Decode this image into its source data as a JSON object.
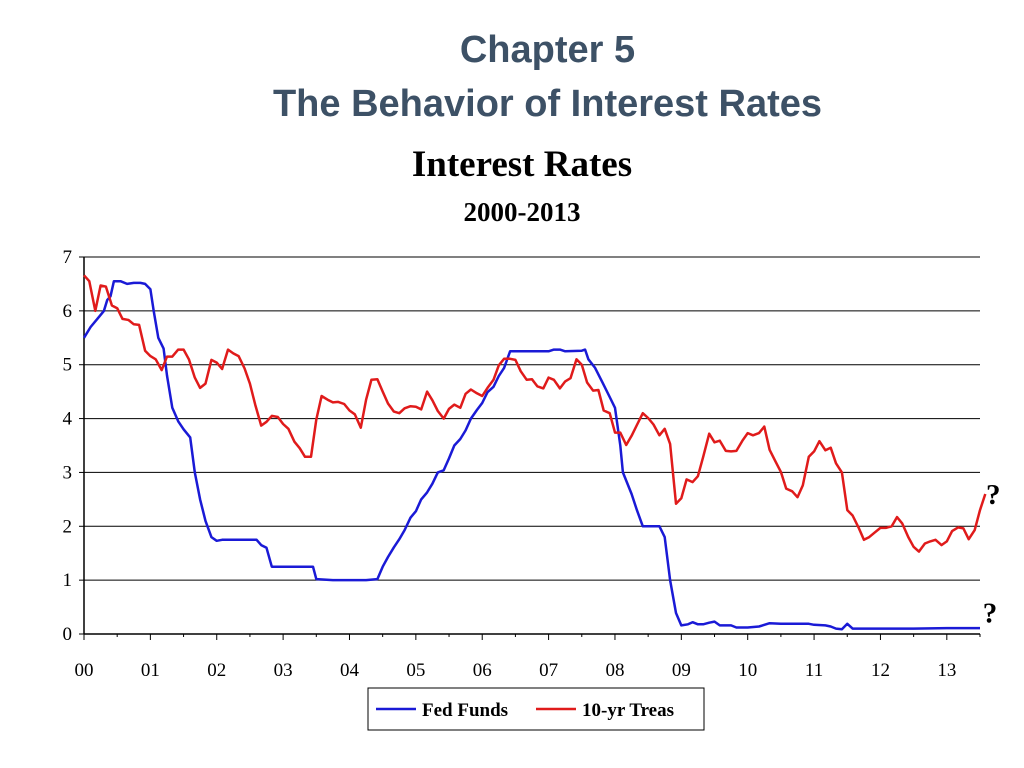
{
  "slide": {
    "title_line1": "Chapter 5",
    "title_line2": "The Behavior of Interest Rates"
  },
  "chart_data": {
    "type": "line",
    "title": "Interest Rates",
    "subtitle": "2000-2013",
    "xlabel": "",
    "ylabel": "",
    "xlim": [
      2000,
      2013.5
    ],
    "ylim": [
      0,
      7
    ],
    "y_ticks": [
      0,
      1,
      2,
      3,
      4,
      5,
      6,
      7
    ],
    "x_tick_values": [
      2000,
      2001,
      2002,
      2003,
      2004,
      2005,
      2006,
      2007,
      2008,
      2009,
      2010,
      2011,
      2012,
      2013
    ],
    "x_tick_labels": [
      "00",
      "01",
      "02",
      "03",
      "04",
      "05",
      "06",
      "07",
      "08",
      "09",
      "10",
      "11",
      "12",
      "13"
    ],
    "grid": "horizontal",
    "legend_position": "bottom",
    "colors": {
      "fed_funds": "#1a1ad6",
      "treasury": "#e01b1b"
    },
    "annotations": [
      {
        "text": "?",
        "x": 2013.7,
        "y": 2.6
      },
      {
        "text": "?",
        "x": 2013.65,
        "y": 0.4
      }
    ],
    "series": [
      {
        "name": "Fed Funds",
        "color": "#1a1ad6",
        "points": [
          [
            2000.0,
            5.5
          ],
          [
            2000.1,
            5.7
          ],
          [
            2000.2,
            5.85
          ],
          [
            2000.3,
            6.0
          ],
          [
            2000.35,
            6.2
          ],
          [
            2000.4,
            6.27
          ],
          [
            2000.45,
            6.55
          ],
          [
            2000.55,
            6.55
          ],
          [
            2000.65,
            6.5
          ],
          [
            2000.75,
            6.52
          ],
          [
            2000.85,
            6.52
          ],
          [
            2000.92,
            6.5
          ],
          [
            2001.0,
            6.4
          ],
          [
            2001.05,
            6.0
          ],
          [
            2001.12,
            5.5
          ],
          [
            2001.2,
            5.3
          ],
          [
            2001.25,
            4.8
          ],
          [
            2001.33,
            4.2
          ],
          [
            2001.42,
            3.95
          ],
          [
            2001.5,
            3.8
          ],
          [
            2001.6,
            3.65
          ],
          [
            2001.67,
            3.0
          ],
          [
            2001.75,
            2.5
          ],
          [
            2001.83,
            2.1
          ],
          [
            2001.92,
            1.8
          ],
          [
            2002.0,
            1.73
          ],
          [
            2002.08,
            1.75
          ],
          [
            2002.25,
            1.75
          ],
          [
            2002.5,
            1.75
          ],
          [
            2002.6,
            1.75
          ],
          [
            2002.67,
            1.65
          ],
          [
            2002.75,
            1.6
          ],
          [
            2002.83,
            1.25
          ],
          [
            2003.0,
            1.25
          ],
          [
            2003.25,
            1.25
          ],
          [
            2003.45,
            1.25
          ],
          [
            2003.5,
            1.02
          ],
          [
            2003.75,
            1.0
          ],
          [
            2004.0,
            1.0
          ],
          [
            2004.25,
            1.0
          ],
          [
            2004.42,
            1.02
          ],
          [
            2004.5,
            1.25
          ],
          [
            2004.58,
            1.43
          ],
          [
            2004.67,
            1.61
          ],
          [
            2004.75,
            1.76
          ],
          [
            2004.83,
            1.93
          ],
          [
            2004.92,
            2.16
          ],
          [
            2005.0,
            2.28
          ],
          [
            2005.08,
            2.5
          ],
          [
            2005.17,
            2.63
          ],
          [
            2005.25,
            2.79
          ],
          [
            2005.33,
            3.0
          ],
          [
            2005.42,
            3.04
          ],
          [
            2005.5,
            3.26
          ],
          [
            2005.58,
            3.5
          ],
          [
            2005.67,
            3.62
          ],
          [
            2005.75,
            3.78
          ],
          [
            2005.83,
            4.0
          ],
          [
            2005.92,
            4.16
          ],
          [
            2006.0,
            4.29
          ],
          [
            2006.08,
            4.49
          ],
          [
            2006.17,
            4.59
          ],
          [
            2006.25,
            4.79
          ],
          [
            2006.33,
            4.94
          ],
          [
            2006.42,
            5.25
          ],
          [
            2006.5,
            5.25
          ],
          [
            2006.75,
            5.25
          ],
          [
            2007.0,
            5.25
          ],
          [
            2007.08,
            5.28
          ],
          [
            2007.17,
            5.28
          ],
          [
            2007.25,
            5.25
          ],
          [
            2007.5,
            5.26
          ],
          [
            2007.55,
            5.28
          ],
          [
            2007.6,
            5.1
          ],
          [
            2007.7,
            4.94
          ],
          [
            2007.8,
            4.7
          ],
          [
            2007.92,
            4.4
          ],
          [
            2008.0,
            4.2
          ],
          [
            2008.08,
            3.5
          ],
          [
            2008.12,
            3.0
          ],
          [
            2008.25,
            2.6
          ],
          [
            2008.33,
            2.3
          ],
          [
            2008.42,
            2.0
          ],
          [
            2008.5,
            2.0
          ],
          [
            2008.6,
            2.0
          ],
          [
            2008.67,
            2.0
          ],
          [
            2008.75,
            1.8
          ],
          [
            2008.83,
            1.0
          ],
          [
            2008.92,
            0.39
          ],
          [
            2009.0,
            0.16
          ],
          [
            2009.1,
            0.18
          ],
          [
            2009.17,
            0.22
          ],
          [
            2009.25,
            0.18
          ],
          [
            2009.33,
            0.18
          ],
          [
            2009.42,
            0.21
          ],
          [
            2009.5,
            0.23
          ],
          [
            2009.58,
            0.16
          ],
          [
            2009.75,
            0.16
          ],
          [
            2009.83,
            0.12
          ],
          [
            2010.0,
            0.12
          ],
          [
            2010.17,
            0.14
          ],
          [
            2010.33,
            0.2
          ],
          [
            2010.5,
            0.19
          ],
          [
            2010.75,
            0.19
          ],
          [
            2010.92,
            0.19
          ],
          [
            2011.0,
            0.17
          ],
          [
            2011.17,
            0.16
          ],
          [
            2011.25,
            0.14
          ],
          [
            2011.33,
            0.1
          ],
          [
            2011.42,
            0.09
          ],
          [
            2011.5,
            0.19
          ],
          [
            2011.58,
            0.1
          ],
          [
            2011.75,
            0.1
          ],
          [
            2012.0,
            0.1
          ],
          [
            2012.5,
            0.1
          ],
          [
            2013.0,
            0.11
          ],
          [
            2013.5,
            0.11
          ]
        ]
      },
      {
        "name": "10-yr Treas",
        "color": "#e01b1b",
        "points": [
          [
            2000.0,
            6.66
          ],
          [
            2000.08,
            6.55
          ],
          [
            2000.17,
            6.0
          ],
          [
            2000.25,
            6.47
          ],
          [
            2000.33,
            6.45
          ],
          [
            2000.42,
            6.1
          ],
          [
            2000.5,
            6.05
          ],
          [
            2000.58,
            5.85
          ],
          [
            2000.67,
            5.83
          ],
          [
            2000.75,
            5.75
          ],
          [
            2000.83,
            5.74
          ],
          [
            2000.92,
            5.26
          ],
          [
            2001.0,
            5.16
          ],
          [
            2001.08,
            5.1
          ],
          [
            2001.17,
            4.9
          ],
          [
            2001.25,
            5.15
          ],
          [
            2001.33,
            5.15
          ],
          [
            2001.42,
            5.28
          ],
          [
            2001.5,
            5.28
          ],
          [
            2001.58,
            5.1
          ],
          [
            2001.67,
            4.76
          ],
          [
            2001.75,
            4.57
          ],
          [
            2001.83,
            4.65
          ],
          [
            2001.92,
            5.09
          ],
          [
            2002.0,
            5.04
          ],
          [
            2002.08,
            4.92
          ],
          [
            2002.17,
            5.28
          ],
          [
            2002.25,
            5.21
          ],
          [
            2002.33,
            5.16
          ],
          [
            2002.42,
            4.93
          ],
          [
            2002.5,
            4.65
          ],
          [
            2002.58,
            4.26
          ],
          [
            2002.67,
            3.87
          ],
          [
            2002.75,
            3.94
          ],
          [
            2002.83,
            4.05
          ],
          [
            2002.92,
            4.03
          ],
          [
            2003.0,
            3.9
          ],
          [
            2003.08,
            3.81
          ],
          [
            2003.17,
            3.57
          ],
          [
            2003.25,
            3.45
          ],
          [
            2003.33,
            3.29
          ],
          [
            2003.42,
            3.29
          ],
          [
            2003.5,
            3.98
          ],
          [
            2003.58,
            4.42
          ],
          [
            2003.67,
            4.35
          ],
          [
            2003.75,
            4.3
          ],
          [
            2003.83,
            4.31
          ],
          [
            2003.92,
            4.27
          ],
          [
            2004.0,
            4.15
          ],
          [
            2004.08,
            4.08
          ],
          [
            2004.17,
            3.83
          ],
          [
            2004.25,
            4.35
          ],
          [
            2004.33,
            4.72
          ],
          [
            2004.42,
            4.73
          ],
          [
            2004.5,
            4.5
          ],
          [
            2004.58,
            4.28
          ],
          [
            2004.67,
            4.13
          ],
          [
            2004.75,
            4.1
          ],
          [
            2004.83,
            4.19
          ],
          [
            2004.92,
            4.23
          ],
          [
            2005.0,
            4.22
          ],
          [
            2005.08,
            4.17
          ],
          [
            2005.17,
            4.5
          ],
          [
            2005.25,
            4.34
          ],
          [
            2005.33,
            4.14
          ],
          [
            2005.42,
            4.0
          ],
          [
            2005.5,
            4.18
          ],
          [
            2005.58,
            4.26
          ],
          [
            2005.67,
            4.2
          ],
          [
            2005.75,
            4.46
          ],
          [
            2005.83,
            4.54
          ],
          [
            2005.92,
            4.47
          ],
          [
            2006.0,
            4.42
          ],
          [
            2006.08,
            4.57
          ],
          [
            2006.17,
            4.72
          ],
          [
            2006.25,
            4.99
          ],
          [
            2006.33,
            5.11
          ],
          [
            2006.42,
            5.11
          ],
          [
            2006.5,
            5.09
          ],
          [
            2006.58,
            4.88
          ],
          [
            2006.67,
            4.72
          ],
          [
            2006.75,
            4.73
          ],
          [
            2006.83,
            4.6
          ],
          [
            2006.92,
            4.56
          ],
          [
            2007.0,
            4.76
          ],
          [
            2007.08,
            4.72
          ],
          [
            2007.17,
            4.56
          ],
          [
            2007.25,
            4.69
          ],
          [
            2007.33,
            4.75
          ],
          [
            2007.42,
            5.1
          ],
          [
            2007.5,
            5.0
          ],
          [
            2007.58,
            4.67
          ],
          [
            2007.67,
            4.52
          ],
          [
            2007.75,
            4.53
          ],
          [
            2007.83,
            4.15
          ],
          [
            2007.92,
            4.1
          ],
          [
            2008.0,
            3.74
          ],
          [
            2008.08,
            3.74
          ],
          [
            2008.17,
            3.51
          ],
          [
            2008.25,
            3.68
          ],
          [
            2008.33,
            3.88
          ],
          [
            2008.42,
            4.1
          ],
          [
            2008.5,
            4.01
          ],
          [
            2008.58,
            3.89
          ],
          [
            2008.67,
            3.69
          ],
          [
            2008.75,
            3.81
          ],
          [
            2008.83,
            3.53
          ],
          [
            2008.92,
            2.42
          ],
          [
            2009.0,
            2.52
          ],
          [
            2009.08,
            2.87
          ],
          [
            2009.17,
            2.82
          ],
          [
            2009.25,
            2.93
          ],
          [
            2009.33,
            3.29
          ],
          [
            2009.42,
            3.72
          ],
          [
            2009.5,
            3.56
          ],
          [
            2009.58,
            3.59
          ],
          [
            2009.67,
            3.4
          ],
          [
            2009.75,
            3.39
          ],
          [
            2009.83,
            3.4
          ],
          [
            2009.92,
            3.59
          ],
          [
            2010.0,
            3.73
          ],
          [
            2010.08,
            3.69
          ],
          [
            2010.17,
            3.73
          ],
          [
            2010.25,
            3.85
          ],
          [
            2010.33,
            3.42
          ],
          [
            2010.42,
            3.2
          ],
          [
            2010.5,
            3.01
          ],
          [
            2010.58,
            2.7
          ],
          [
            2010.67,
            2.65
          ],
          [
            2010.75,
            2.54
          ],
          [
            2010.83,
            2.76
          ],
          [
            2010.92,
            3.29
          ],
          [
            2011.0,
            3.39
          ],
          [
            2011.08,
            3.58
          ],
          [
            2011.17,
            3.41
          ],
          [
            2011.25,
            3.46
          ],
          [
            2011.33,
            3.17
          ],
          [
            2011.42,
            3.0
          ],
          [
            2011.5,
            2.3
          ],
          [
            2011.58,
            2.2
          ],
          [
            2011.67,
            1.98
          ],
          [
            2011.75,
            1.75
          ],
          [
            2011.83,
            1.8
          ],
          [
            2011.92,
            1.89
          ],
          [
            2012.0,
            1.97
          ],
          [
            2012.08,
            1.97
          ],
          [
            2012.17,
            2.0
          ],
          [
            2012.25,
            2.17
          ],
          [
            2012.33,
            2.05
          ],
          [
            2012.42,
            1.8
          ],
          [
            2012.5,
            1.62
          ],
          [
            2012.58,
            1.53
          ],
          [
            2012.67,
            1.68
          ],
          [
            2012.75,
            1.72
          ],
          [
            2012.83,
            1.75
          ],
          [
            2012.92,
            1.65
          ],
          [
            2013.0,
            1.72
          ],
          [
            2013.08,
            1.91
          ],
          [
            2013.17,
            1.98
          ],
          [
            2013.25,
            1.96
          ],
          [
            2013.33,
            1.76
          ],
          [
            2013.42,
            1.93
          ],
          [
            2013.5,
            2.3
          ],
          [
            2013.58,
            2.6
          ]
        ]
      }
    ]
  }
}
